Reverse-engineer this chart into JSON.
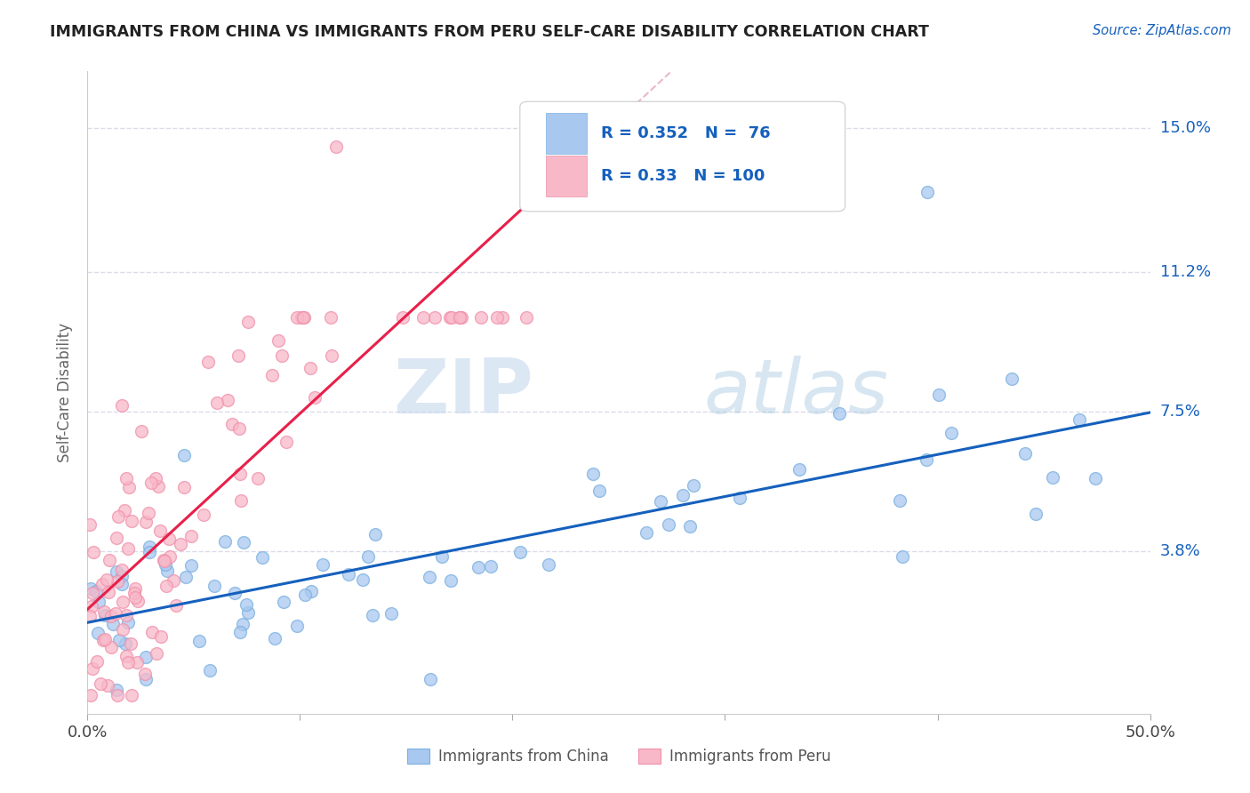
{
  "title": "IMMIGRANTS FROM CHINA VS IMMIGRANTS FROM PERU SELF-CARE DISABILITY CORRELATION CHART",
  "source": "Source: ZipAtlas.com",
  "ylabel": "Self-Care Disability",
  "watermark_zip": "ZIP",
  "watermark_atlas": "atlas",
  "xlim": [
    0.0,
    0.5
  ],
  "ylim": [
    -0.005,
    0.165
  ],
  "xtick_positions": [
    0.0,
    0.1,
    0.2,
    0.3,
    0.4,
    0.5
  ],
  "xtick_labels": [
    "0.0%",
    "",
    "",
    "",
    "",
    "50.0%"
  ],
  "ytick_labels": [
    "3.8%",
    "7.5%",
    "11.2%",
    "15.0%"
  ],
  "ytick_values": [
    0.038,
    0.075,
    0.112,
    0.15
  ],
  "china_color": "#a8c8f0",
  "china_edge_color": "#7ab0e0",
  "peru_color": "#f8b8c8",
  "peru_edge_color": "#f090aa",
  "china_line_color": "#1560bd",
  "peru_line_color": "#e8204a",
  "peru_dash_color": "#e8b0c0",
  "china_R": 0.352,
  "china_N": 76,
  "peru_R": 0.33,
  "peru_N": 100,
  "background_color": "#ffffff",
  "grid_color": "#d8d8e8",
  "title_color": "#222222",
  "legend_R_color": "#1560bd",
  "legend_text_color": "#333333",
  "bottom_legend_color": "#555555"
}
